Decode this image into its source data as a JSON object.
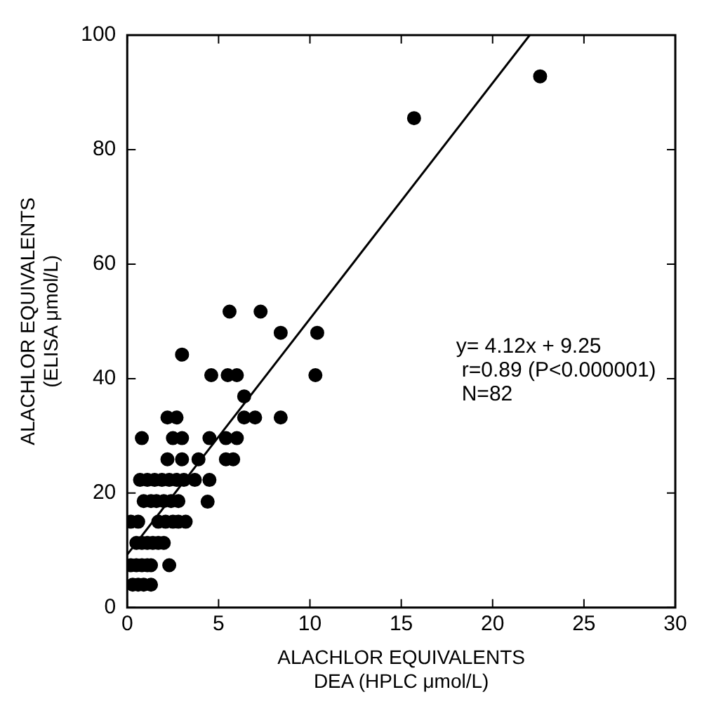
{
  "chart_data": {
    "type": "scatter",
    "xlabel": "ALACHLOR EQUIVALENTS\nDEA (HPLC μmol/L)",
    "ylabel": "ALACHLOR EQUIVALENTS\n(ELISA μmol/L)",
    "xlim": [
      0,
      30
    ],
    "xticks": [
      0,
      5,
      10,
      15,
      20,
      25,
      30
    ],
    "ylim": [
      0,
      100
    ],
    "yticks": [
      0,
      20,
      40,
      60,
      80,
      100
    ],
    "grid": false,
    "legend": false,
    "marker": "circle",
    "annotations": [
      "y= 4.12x + 9.25",
      "r=0.89 (P<0.000001)",
      "N=82"
    ],
    "series": [
      {
        "type": "scatter",
        "color": "#000000",
        "x": [
          0.3,
          0.6,
          0.9,
          1.3,
          0.2,
          0.5,
          0.8,
          1.1,
          1.3,
          2.3,
          0.5,
          0.8,
          1.1,
          1.4,
          1.7,
          2.0,
          0.2,
          0.6,
          1.7,
          2.1,
          2.5,
          2.8,
          3.2,
          0.9,
          1.3,
          1.6,
          2.0,
          2.4,
          2.8,
          4.4,
          0.7,
          1.1,
          1.5,
          1.9,
          2.3,
          2.7,
          3.1,
          3.7,
          4.5,
          2.2,
          3.0,
          3.9,
          5.4,
          5.8,
          0.8,
          2.5,
          3.0,
          4.5,
          5.4,
          6.0,
          2.2,
          2.7,
          6.4,
          7.0,
          8.4,
          6.4,
          4.6,
          5.5,
          6.0,
          10.3,
          3.0,
          8.4,
          10.4,
          5.6,
          7.3,
          15.7,
          22.6
        ],
        "values": [
          4,
          4,
          4,
          4,
          7.4,
          7.4,
          7.4,
          7.4,
          7.4,
          7.4,
          11.3,
          11.3,
          11.3,
          11.3,
          11.3,
          11.3,
          15,
          15,
          15,
          15,
          15,
          15,
          15,
          18.6,
          18.6,
          18.6,
          18.6,
          18.6,
          18.6,
          18.5,
          22.3,
          22.3,
          22.3,
          22.3,
          22.3,
          22.3,
          22.3,
          22.3,
          22.3,
          25.9,
          25.9,
          25.9,
          25.9,
          25.9,
          29.6,
          29.6,
          29.6,
          29.6,
          29.6,
          29.6,
          33.2,
          33.2,
          33.2,
          33.2,
          33.2,
          36.9,
          40.6,
          40.6,
          40.6,
          40.6,
          44.2,
          48,
          48,
          51.7,
          51.7,
          85.5,
          92.8
        ]
      },
      {
        "type": "line",
        "color": "#000000",
        "marker": "none",
        "line_style": "solid",
        "x": [
          0,
          22.03
        ],
        "values": [
          9.25,
          100
        ]
      }
    ]
  }
}
